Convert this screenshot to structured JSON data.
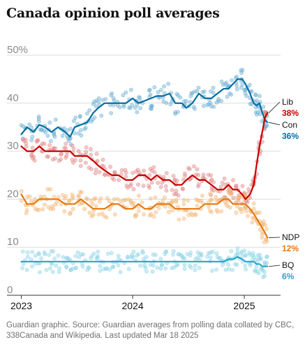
{
  "title": "Canada opinion poll averages",
  "footer": "Guardian graphic. Source: Guardian averages from polling data collated by CBC, 338Canada and Wikipedia. Last updated Mar 18 2025",
  "chart_data": {
    "type": "line",
    "title": "Canada opinion poll averages",
    "ylim": [
      0,
      50
    ],
    "xlim": [
      "2022-11-15",
      "2025-04-30"
    ],
    "y_ticks": [
      {
        "value": 50,
        "label": "50%"
      },
      {
        "value": 40,
        "label": "40"
      },
      {
        "value": 30,
        "label": "30"
      },
      {
        "value": 20,
        "label": "20"
      },
      {
        "value": 10,
        "label": "10"
      },
      {
        "value": 0,
        "label": "0"
      }
    ],
    "x_ticks": [
      {
        "date": "2023-01-01",
        "label": "2023"
      },
      {
        "date": "2024-01-01",
        "label": "2024"
      },
      {
        "date": "2025-01-01",
        "label": "2025"
      }
    ],
    "grid": true,
    "raw_polls_shown_as_faded_dots": true,
    "series": [
      {
        "name": "Con",
        "end_label": "36%",
        "color": "#056da1",
        "dot_color": "#6fb0d3",
        "points": [
          [
            "2023-01-01",
            33.5
          ],
          [
            "2023-01-20",
            35
          ],
          [
            "2023-02-10",
            34
          ],
          [
            "2023-03-01",
            35.5
          ],
          [
            "2023-03-20",
            35
          ],
          [
            "2023-04-10",
            34
          ],
          [
            "2023-05-01",
            35
          ],
          [
            "2023-05-25",
            34
          ],
          [
            "2023-06-10",
            33
          ],
          [
            "2023-06-25",
            35
          ],
          [
            "2023-07-15",
            35.5
          ],
          [
            "2023-08-05",
            36
          ],
          [
            "2023-08-25",
            38
          ],
          [
            "2023-09-10",
            39
          ],
          [
            "2023-10-01",
            40
          ],
          [
            "2023-10-25",
            40
          ],
          [
            "2023-11-15",
            40
          ],
          [
            "2023-12-10",
            40
          ],
          [
            "2024-01-01",
            41
          ],
          [
            "2024-01-20",
            40
          ],
          [
            "2024-02-10",
            40.5
          ],
          [
            "2024-03-01",
            41
          ],
          [
            "2024-03-20",
            41.5
          ],
          [
            "2024-04-10",
            41.5
          ],
          [
            "2024-05-01",
            42
          ],
          [
            "2024-05-20",
            40
          ],
          [
            "2024-06-10",
            40
          ],
          [
            "2024-06-25",
            39
          ],
          [
            "2024-07-15",
            40
          ],
          [
            "2024-08-05",
            42
          ],
          [
            "2024-08-25",
            41
          ],
          [
            "2024-09-15",
            41
          ],
          [
            "2024-10-05",
            42
          ],
          [
            "2024-10-25",
            43
          ],
          [
            "2024-11-10",
            43
          ],
          [
            "2024-11-25",
            44
          ],
          [
            "2024-12-10",
            45
          ],
          [
            "2024-12-25",
            45
          ],
          [
            "2025-01-05",
            44
          ],
          [
            "2025-01-20",
            42
          ],
          [
            "2025-02-01",
            40
          ],
          [
            "2025-02-10",
            39.5
          ],
          [
            "2025-02-20",
            40
          ],
          [
            "2025-03-01",
            38
          ],
          [
            "2025-03-10",
            36.5
          ],
          [
            "2025-03-18",
            36
          ]
        ]
      },
      {
        "name": "Lib",
        "end_label": "38%",
        "color": "#c70000",
        "dot_color": "#e08a8a",
        "points": [
          [
            "2023-01-01",
            31
          ],
          [
            "2023-01-20",
            30
          ],
          [
            "2023-02-10",
            30
          ],
          [
            "2023-03-01",
            31
          ],
          [
            "2023-03-20",
            30
          ],
          [
            "2023-04-10",
            30
          ],
          [
            "2023-05-01",
            30
          ],
          [
            "2023-05-25",
            30
          ],
          [
            "2023-06-10",
            30
          ],
          [
            "2023-06-25",
            29
          ],
          [
            "2023-07-15",
            29
          ],
          [
            "2023-08-05",
            29
          ],
          [
            "2023-08-25",
            28
          ],
          [
            "2023-09-10",
            27
          ],
          [
            "2023-10-01",
            26
          ],
          [
            "2023-10-25",
            25
          ],
          [
            "2023-11-15",
            25
          ],
          [
            "2023-12-10",
            24
          ],
          [
            "2024-01-01",
            24
          ],
          [
            "2024-01-20",
            25
          ],
          [
            "2024-02-10",
            25
          ],
          [
            "2024-03-01",
            24
          ],
          [
            "2024-03-20",
            25
          ],
          [
            "2024-04-10",
            24
          ],
          [
            "2024-05-01",
            24
          ],
          [
            "2024-05-20",
            23
          ],
          [
            "2024-06-10",
            23
          ],
          [
            "2024-06-25",
            24
          ],
          [
            "2024-07-15",
            25
          ],
          [
            "2024-08-05",
            24
          ],
          [
            "2024-08-25",
            24
          ],
          [
            "2024-09-15",
            23
          ],
          [
            "2024-10-05",
            22
          ],
          [
            "2024-10-25",
            22
          ],
          [
            "2024-11-10",
            23
          ],
          [
            "2024-11-25",
            22
          ],
          [
            "2024-12-10",
            22
          ],
          [
            "2024-12-25",
            21
          ],
          [
            "2025-01-05",
            20
          ],
          [
            "2025-01-20",
            21
          ],
          [
            "2025-02-01",
            23
          ],
          [
            "2025-02-10",
            27
          ],
          [
            "2025-02-20",
            31
          ],
          [
            "2025-03-01",
            34
          ],
          [
            "2025-03-10",
            37
          ],
          [
            "2025-03-18",
            38
          ]
        ]
      },
      {
        "name": "NDP",
        "end_label": "12%",
        "color": "#e5780e",
        "dot_color": "#f2b877",
        "points": [
          [
            "2023-01-01",
            21
          ],
          [
            "2023-01-20",
            19
          ],
          [
            "2023-02-10",
            19
          ],
          [
            "2023-03-01",
            20
          ],
          [
            "2023-03-20",
            20
          ],
          [
            "2023-04-10",
            20
          ],
          [
            "2023-05-01",
            20
          ],
          [
            "2023-05-25",
            19
          ],
          [
            "2023-06-10",
            19
          ],
          [
            "2023-06-25",
            19
          ],
          [
            "2023-07-15",
            20
          ],
          [
            "2023-08-05",
            19
          ],
          [
            "2023-08-25",
            18
          ],
          [
            "2023-09-10",
            18
          ],
          [
            "2023-10-01",
            18
          ],
          [
            "2023-10-25",
            19
          ],
          [
            "2023-11-15",
            19
          ],
          [
            "2023-12-10",
            18
          ],
          [
            "2024-01-01",
            18
          ],
          [
            "2024-01-20",
            19
          ],
          [
            "2024-02-10",
            18
          ],
          [
            "2024-03-01",
            18
          ],
          [
            "2024-03-20",
            19
          ],
          [
            "2024-04-10",
            19
          ],
          [
            "2024-05-01",
            19
          ],
          [
            "2024-05-20",
            18
          ],
          [
            "2024-06-10",
            18
          ],
          [
            "2024-06-25",
            18
          ],
          [
            "2024-07-15",
            18
          ],
          [
            "2024-08-05",
            18
          ],
          [
            "2024-08-25",
            19
          ],
          [
            "2024-09-15",
            19
          ],
          [
            "2024-10-05",
            19
          ],
          [
            "2024-10-25",
            20
          ],
          [
            "2024-11-10",
            20
          ],
          [
            "2024-11-25",
            19
          ],
          [
            "2024-12-10",
            19
          ],
          [
            "2024-12-25",
            19
          ],
          [
            "2025-01-05",
            19
          ],
          [
            "2025-01-20",
            18
          ],
          [
            "2025-02-01",
            17
          ],
          [
            "2025-02-10",
            16
          ],
          [
            "2025-02-20",
            15
          ],
          [
            "2025-03-01",
            14
          ],
          [
            "2025-03-10",
            13
          ],
          [
            "2025-03-18",
            12
          ]
        ]
      },
      {
        "name": "BQ",
        "end_label": "6%",
        "color": "#27a5c7",
        "dot_color": "#8fd4e6",
        "points": [
          [
            "2023-01-01",
            7
          ],
          [
            "2023-01-20",
            7
          ],
          [
            "2023-02-10",
            7
          ],
          [
            "2023-03-01",
            7
          ],
          [
            "2023-03-20",
            7
          ],
          [
            "2023-04-10",
            7
          ],
          [
            "2023-05-01",
            7
          ],
          [
            "2023-05-25",
            7
          ],
          [
            "2023-06-10",
            7
          ],
          [
            "2023-06-25",
            7
          ],
          [
            "2023-07-15",
            7
          ],
          [
            "2023-08-05",
            7
          ],
          [
            "2023-08-25",
            7
          ],
          [
            "2023-09-10",
            7
          ],
          [
            "2023-10-01",
            7
          ],
          [
            "2023-10-25",
            7
          ],
          [
            "2023-11-15",
            7
          ],
          [
            "2023-12-10",
            7
          ],
          [
            "2024-01-01",
            7
          ],
          [
            "2024-01-20",
            7
          ],
          [
            "2024-02-10",
            7
          ],
          [
            "2024-03-01",
            7
          ],
          [
            "2024-03-20",
            7
          ],
          [
            "2024-04-10",
            7
          ],
          [
            "2024-05-01",
            7
          ],
          [
            "2024-05-20",
            7
          ],
          [
            "2024-06-10",
            7
          ],
          [
            "2024-06-25",
            7
          ],
          [
            "2024-07-15",
            7
          ],
          [
            "2024-08-05",
            7
          ],
          [
            "2024-08-25",
            7
          ],
          [
            "2024-09-15",
            7
          ],
          [
            "2024-10-05",
            7
          ],
          [
            "2024-10-25",
            7
          ],
          [
            "2024-11-10",
            7.5
          ],
          [
            "2024-11-25",
            7.5
          ],
          [
            "2024-12-10",
            8
          ],
          [
            "2024-12-25",
            7.5
          ],
          [
            "2025-01-05",
            7
          ],
          [
            "2025-01-20",
            7
          ],
          [
            "2025-02-01",
            7
          ],
          [
            "2025-02-10",
            6.5
          ],
          [
            "2025-02-20",
            6.5
          ],
          [
            "2025-03-01",
            6
          ],
          [
            "2025-03-10",
            6
          ],
          [
            "2025-03-18",
            6
          ]
        ]
      }
    ],
    "end_labels_order": [
      "Lib",
      "Con",
      "NDP",
      "BQ"
    ],
    "background": "#ffffff",
    "grid_color": "#dcdcdc",
    "axis_color": "#333333"
  }
}
